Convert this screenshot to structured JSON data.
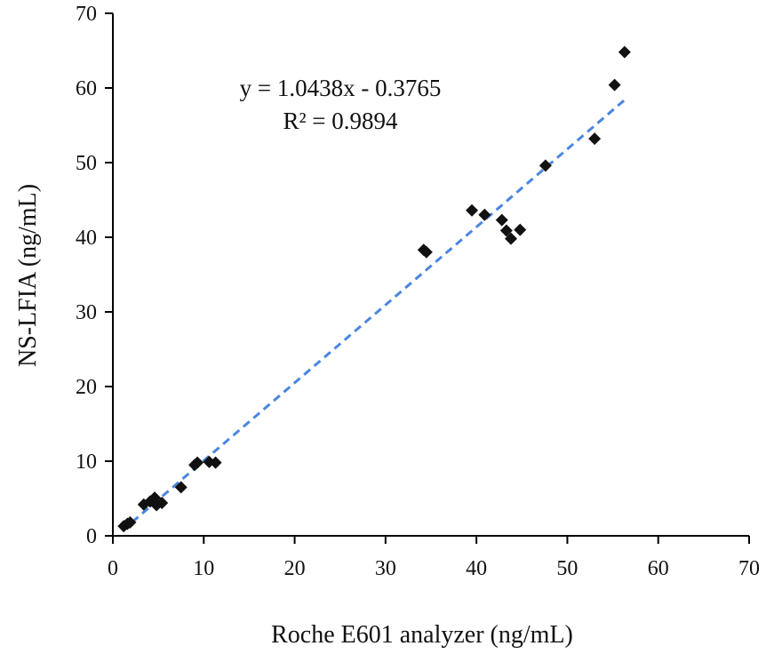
{
  "chart_data": {
    "type": "scatter",
    "title": "",
    "xlabel": "Roche E601 analyzer  (ng/mL)",
    "ylabel": "NS-LFIA  (ng/mL)",
    "xlim": [
      0,
      70
    ],
    "ylim": [
      0,
      70
    ],
    "x_ticks": [
      "0",
      "10",
      "20",
      "30",
      "40",
      "50",
      "60",
      "70"
    ],
    "y_ticks": [
      "0",
      "10",
      "20",
      "30",
      "40",
      "50",
      "60",
      "70"
    ],
    "grid": false,
    "legend": "none",
    "marker": "diamond",
    "marker_color": "#111111",
    "trendline_color": "#4a86e0",
    "trendline": {
      "slope": 1.0438,
      "intercept": -0.3765,
      "x_range": [
        1.0,
        56.5
      ]
    },
    "equation_text": "y = 1.0438x  - 0.3765",
    "r2_text": "R² = 0.9894",
    "points": [
      {
        "x": 1.2,
        "y": 1.3
      },
      {
        "x": 1.6,
        "y": 1.6
      },
      {
        "x": 1.9,
        "y": 1.8
      },
      {
        "x": 3.4,
        "y": 4.2
      },
      {
        "x": 4.1,
        "y": 4.6
      },
      {
        "x": 4.6,
        "y": 5.1
      },
      {
        "x": 4.8,
        "y": 4.1
      },
      {
        "x": 5.4,
        "y": 4.4
      },
      {
        "x": 7.5,
        "y": 6.5
      },
      {
        "x": 9.0,
        "y": 9.5
      },
      {
        "x": 9.3,
        "y": 9.8
      },
      {
        "x": 10.6,
        "y": 9.9
      },
      {
        "x": 11.3,
        "y": 9.8
      },
      {
        "x": 34.2,
        "y": 38.3
      },
      {
        "x": 34.5,
        "y": 38.0
      },
      {
        "x": 39.5,
        "y": 43.6
      },
      {
        "x": 40.9,
        "y": 43.0
      },
      {
        "x": 42.8,
        "y": 42.3
      },
      {
        "x": 43.3,
        "y": 40.9
      },
      {
        "x": 43.8,
        "y": 39.8
      },
      {
        "x": 44.8,
        "y": 41.0
      },
      {
        "x": 47.6,
        "y": 49.6
      },
      {
        "x": 53.0,
        "y": 53.2
      },
      {
        "x": 55.2,
        "y": 60.4
      },
      {
        "x": 56.3,
        "y": 64.8
      }
    ]
  }
}
